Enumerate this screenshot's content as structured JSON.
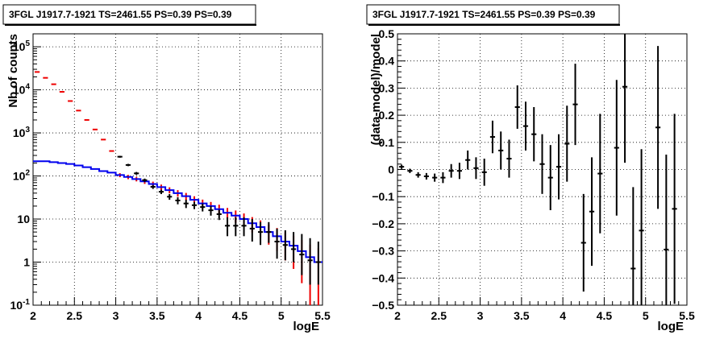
{
  "colors": {
    "data": "#000000",
    "model": "#0000ee",
    "model_err": "#ee0000",
    "grid": "#000000"
  },
  "chart_data": [
    {
      "type": "line",
      "title": "3FGL J1917.7-1921 TS=2461.55 PS=0.39 PS=0.39",
      "xlabel": "logE",
      "ylabel": "Nb of counts",
      "xlim": [
        2,
        5.5
      ],
      "ylim": [
        0.1,
        200000
      ],
      "yscale": "log",
      "grid": true,
      "x_ticks": [
        "2",
        "2.5",
        "3",
        "3.5",
        "4",
        "4.5",
        "5",
        "5.5"
      ],
      "y_ticks": [
        "10-1",
        "1",
        "10",
        "102",
        "103",
        "104",
        "105"
      ],
      "x_bins": [
        2.05,
        2.15,
        2.25,
        2.35,
        2.45,
        2.55,
        2.65,
        2.75,
        2.85,
        2.95,
        3.05,
        3.15,
        3.25,
        3.35,
        3.45,
        3.55,
        3.65,
        3.75,
        3.85,
        3.95,
        4.05,
        4.15,
        4.25,
        4.35,
        4.45,
        4.55,
        4.65,
        4.75,
        4.85,
        4.95,
        5.05,
        5.15,
        5.25,
        5.35,
        5.45
      ],
      "bin_halfwidth": 0.05,
      "series": [
        {
          "name": "data",
          "values": [
            26000,
            19000,
            13500,
            9000,
            5500,
            3300,
            2000,
            1200,
            700,
            380,
            280,
            180,
            115,
            80,
            56,
            43,
            33,
            27,
            23,
            21,
            19,
            16,
            13,
            7,
            7,
            7,
            6,
            5,
            5,
            3,
            2.5,
            2,
            1.5,
            1.1,
            1
          ],
          "err_low": [
            26000,
            19000,
            13500,
            9000,
            5500,
            3300,
            2000,
            1200,
            700,
            380,
            14,
            11,
            9,
            7,
            6,
            5,
            5,
            5,
            5,
            4,
            4,
            4,
            3.5,
            3,
            3,
            3,
            3,
            2.5,
            2.2,
            1.8,
            1.4,
            1,
            1,
            0.8,
            0.7
          ],
          "err_high": [
            26000,
            19000,
            13500,
            9000,
            5500,
            3300,
            2000,
            1200,
            700,
            380,
            14,
            11,
            9,
            7,
            6,
            5,
            5,
            5,
            5,
            4,
            4,
            4,
            3.5,
            4,
            4,
            4,
            4,
            3.5,
            3.5,
            3,
            3,
            3,
            3,
            2.5,
            2
          ]
        },
        {
          "name": "model",
          "values": [
            220,
            220,
            210,
            200,
            190,
            175,
            160,
            145,
            130,
            120,
            105,
            95,
            85,
            75,
            65,
            55,
            47,
            40,
            34,
            28,
            23,
            20,
            17,
            14,
            12,
            10,
            8,
            6.5,
            5,
            4,
            3,
            2.4,
            1.8,
            1.3,
            1
          ]
        }
      ]
    },
    {
      "type": "line",
      "title": "3FGL J1917.7-1921 TS=2461.55 PS=0.39 PS=0.39",
      "xlabel": "logE",
      "ylabel": "(data-model)/model",
      "xlim": [
        2,
        5.5
      ],
      "ylim": [
        -0.5,
        0.5
      ],
      "grid": true,
      "x_ticks": [
        "2",
        "2.5",
        "3",
        "3.5",
        "4",
        "4.5",
        "5",
        "5.5"
      ],
      "y_ticks": [
        "−0.5",
        "−0.4",
        "−0.3",
        "−0.2",
        "−0.1",
        "0",
        "0.1",
        "0.2",
        "0.3",
        "0.4",
        "0.5"
      ],
      "x_bins": [
        2.05,
        2.15,
        2.25,
        2.35,
        2.45,
        2.55,
        2.65,
        2.75,
        2.85,
        2.95,
        3.05,
        3.15,
        3.25,
        3.35,
        3.45,
        3.55,
        3.65,
        3.75,
        3.85,
        3.95,
        4.05,
        4.15,
        4.25,
        4.35,
        4.45,
        4.55,
        4.65,
        4.75,
        4.85,
        4.95,
        5.05,
        5.15,
        5.25,
        5.35,
        5.45
      ],
      "bin_halfwidth": 0.05,
      "series": [
        {
          "name": "residual",
          "values": [
            0.01,
            -0.005,
            -0.02,
            -0.025,
            -0.03,
            -0.03,
            -0.005,
            -0.005,
            0.035,
            0.005,
            -0.01,
            0.12,
            0.07,
            0.04,
            0.23,
            0.16,
            0.13,
            0.02,
            -0.03,
            0.01,
            0.095,
            0.24,
            -0.27,
            -0.155,
            -0.015,
            0.08,
            0.305,
            -0.365,
            -0.225,
            0.155,
            -0.295,
            -0.145
          ],
          "x_index": [
            0,
            1,
            2,
            3,
            4,
            5,
            6,
            7,
            8,
            9,
            10,
            11,
            12,
            13,
            14,
            15,
            16,
            17,
            18,
            19,
            20,
            21,
            22,
            23,
            24,
            26,
            27,
            28,
            29,
            31,
            32,
            33
          ],
          "err": [
            0.008,
            0.008,
            0.01,
            0.012,
            0.015,
            0.02,
            0.025,
            0.03,
            0.035,
            0.04,
            0.05,
            0.06,
            0.07,
            0.07,
            0.08,
            0.09,
            0.1,
            0.11,
            0.12,
            0.12,
            0.14,
            0.15,
            0.18,
            0.2,
            0.22,
            0.25,
            0.28,
            0.3,
            0.3,
            0.3,
            0.35,
            0.35
          ]
        }
      ]
    }
  ]
}
